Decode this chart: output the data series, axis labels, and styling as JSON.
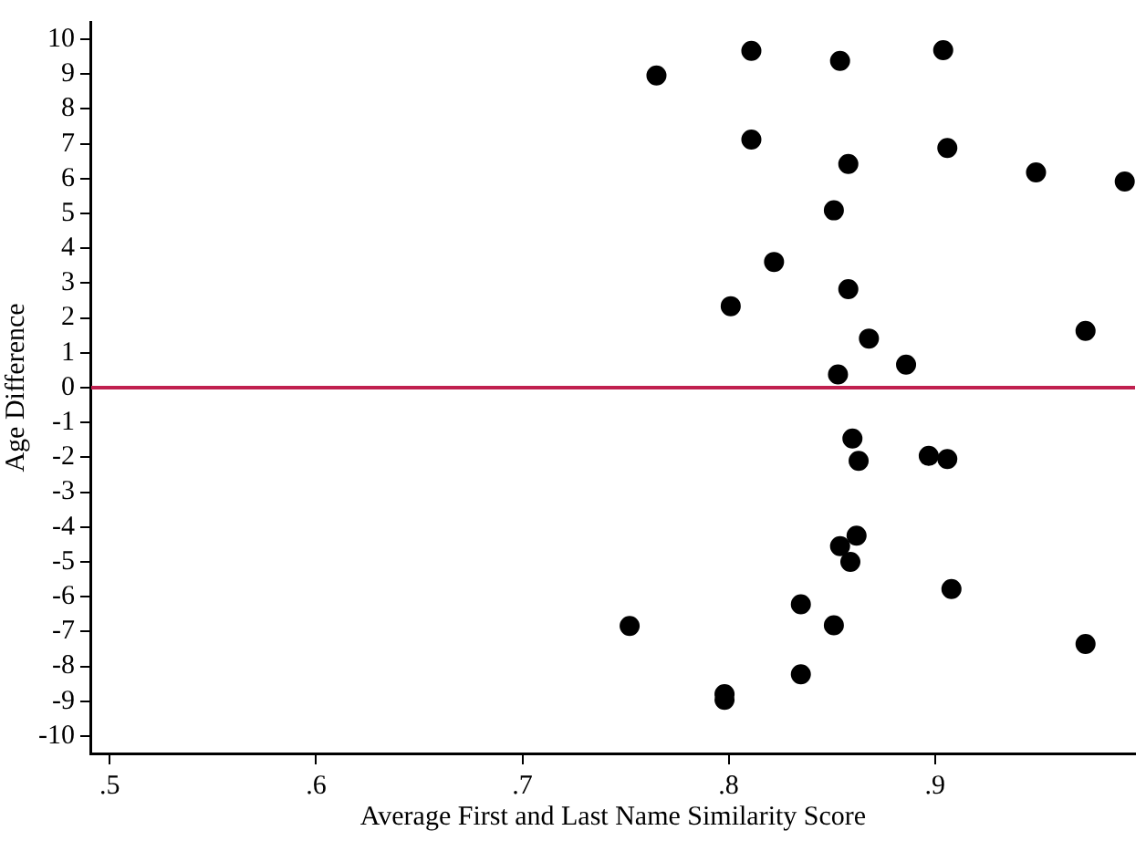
{
  "chart_data": {
    "type": "scatter",
    "xlabel": "Average First and Last Name Similarity Score",
    "ylabel": "Age Difference",
    "x": [
      0.765,
      0.811,
      0.854,
      0.904,
      0.811,
      0.906,
      0.858,
      0.949,
      0.992,
      0.851,
      0.822,
      0.858,
      0.801,
      0.868,
      0.973,
      0.853,
      0.886,
      0.86,
      0.863,
      0.897,
      0.906,
      0.862,
      0.854,
      0.859,
      0.908,
      0.835,
      0.752,
      0.851,
      0.973,
      0.835,
      0.798,
      0.798
    ],
    "series": [
      {
        "color": "#000000",
        "values": [
          8.96,
          9.67,
          9.38,
          9.69,
          7.12,
          6.88,
          6.42,
          6.18,
          5.92,
          5.09,
          3.61,
          2.83,
          2.34,
          1.41,
          1.63,
          0.38,
          0.66,
          -1.46,
          -2.1,
          -1.96,
          -2.05,
          -4.25,
          -4.55,
          -5.0,
          -5.78,
          -6.22,
          -6.84,
          -6.82,
          -7.36,
          -8.23,
          -8.8,
          -8.96
        ]
      }
    ],
    "xlim": [
      0.491,
      0.997
    ],
    "ylim": [
      -10.5,
      10.5
    ],
    "xticks": [
      {
        "value": 0.5,
        "label": ".5"
      },
      {
        "value": 0.6,
        "label": ".6"
      },
      {
        "value": 0.7,
        "label": ".7"
      },
      {
        "value": 0.8,
        "label": ".8"
      },
      {
        "value": 0.9,
        "label": ".9"
      }
    ],
    "yticks": [
      -10,
      -9,
      -8,
      -7,
      -6,
      -5,
      -4,
      -3,
      -2,
      -1,
      0,
      1,
      2,
      3,
      4,
      5,
      6,
      7,
      8,
      9,
      10
    ],
    "ref_lines": [
      {
        "axis": "y",
        "value": 0,
        "color": "#c0204f"
      }
    ],
    "grid": false,
    "legend": false,
    "marker": "circle"
  }
}
